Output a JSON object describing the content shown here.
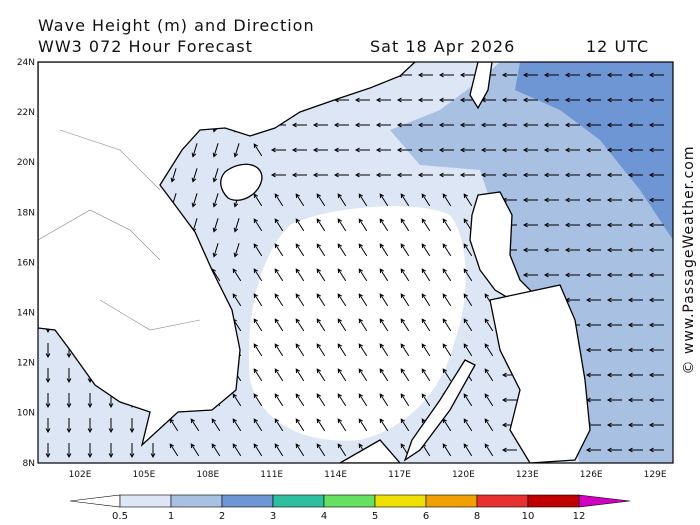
{
  "header": {
    "title": "Wave Height (m) and Direction",
    "model": "WW3 072 Hour Forecast",
    "date": "Sat 18 Apr 2026",
    "time": "12 UTC"
  },
  "map": {
    "lat_labels": [
      "24N",
      "22N",
      "20N",
      "18N",
      "16N",
      "14N",
      "12N",
      "10N",
      "8N"
    ],
    "lon_labels": [
      "102E",
      "105E",
      "108E",
      "111E",
      "114E",
      "117E",
      "120E",
      "123E",
      "126E",
      "129E"
    ]
  },
  "colorbar": {
    "labels": [
      "0.5",
      "1",
      "2",
      "3",
      "4",
      "5",
      "6",
      "8",
      "10",
      "12"
    ],
    "colors": [
      "#ffffff",
      "#dde6f5",
      "#a8c0e2",
      "#6e96d4",
      "#2dbfa0",
      "#66e060",
      "#f0e000",
      "#f0a000",
      "#e83030",
      "#c00000",
      "#d000c0"
    ]
  },
  "credit": "© www.PassageWeather.com"
}
